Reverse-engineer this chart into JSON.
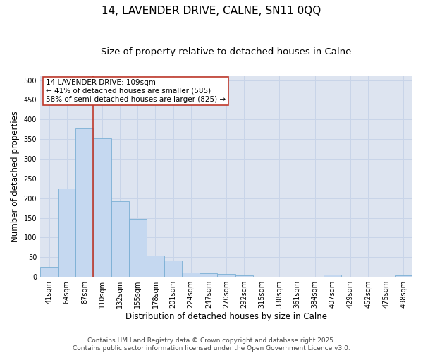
{
  "title1": "14, LAVENDER DRIVE, CALNE, SN11 0QQ",
  "title2": "Size of property relative to detached houses in Calne",
  "xlabel": "Distribution of detached houses by size in Calne",
  "ylabel": "Number of detached properties",
  "categories": [
    "41sqm",
    "64sqm",
    "87sqm",
    "110sqm",
    "132sqm",
    "155sqm",
    "178sqm",
    "201sqm",
    "224sqm",
    "247sqm",
    "270sqm",
    "292sqm",
    "315sqm",
    "338sqm",
    "361sqm",
    "384sqm",
    "407sqm",
    "429sqm",
    "452sqm",
    "475sqm",
    "498sqm"
  ],
  "values": [
    25,
    225,
    378,
    352,
    193,
    147,
    55,
    41,
    12,
    9,
    7,
    4,
    0,
    0,
    0,
    0,
    5,
    0,
    0,
    0,
    4
  ],
  "bar_color": "#c5d8f0",
  "bar_edge_color": "#7aafd4",
  "vline_color": "#c0392b",
  "vline_index": 2.5,
  "annotation_text": "14 LAVENDER DRIVE: 109sqm\n← 41% of detached houses are smaller (585)\n58% of semi-detached houses are larger (825) →",
  "annotation_box_color": "#c0392b",
  "annotation_bg": "white",
  "ylim": [
    0,
    510
  ],
  "yticks": [
    0,
    50,
    100,
    150,
    200,
    250,
    300,
    350,
    400,
    450,
    500
  ],
  "grid_color": "#c8d4e8",
  "background_color": "#dde4f0",
  "footer_text": "Contains HM Land Registry data © Crown copyright and database right 2025.\nContains public sector information licensed under the Open Government Licence v3.0.",
  "title1_fontsize": 11,
  "title2_fontsize": 9.5,
  "axis_label_fontsize": 8.5,
  "tick_fontsize": 7,
  "annotation_fontsize": 7.5,
  "footer_fontsize": 6.5
}
